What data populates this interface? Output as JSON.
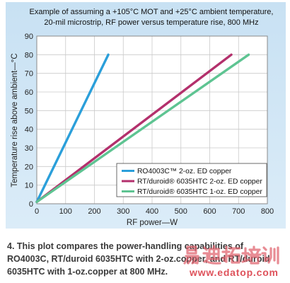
{
  "chart_data": {
    "type": "line",
    "title_lines": [
      "Example of assuming a +105°C MOT and +25°C ambient temperature,",
      "20-mil microstrip, RF power versus temperature rise, 800 MHz"
    ],
    "xlabel": "RF power—W",
    "ylabel": "Temperature rise above ambient—°C",
    "xlim": [
      0,
      800
    ],
    "ylim": [
      0,
      90
    ],
    "xticks": [
      0,
      100,
      200,
      300,
      400,
      500,
      600,
      700,
      800
    ],
    "yticks": [
      0,
      10,
      20,
      30,
      40,
      50,
      60,
      70,
      80,
      90
    ],
    "grid": true,
    "legend_position": "bottom-right",
    "series": [
      {
        "name": "RO4003C™ 2-oz. ED copper",
        "color": "#2b9fda",
        "x": [
          0,
          248
        ],
        "y": [
          1,
          80
        ]
      },
      {
        "name": "RT/duroid® 6035HTC 2-oz. ED copper",
        "color": "#b3306c",
        "x": [
          0,
          675
        ],
        "y": [
          1,
          80
        ]
      },
      {
        "name": "RT/duroid® 6035HTC 1-oz. ED copper",
        "color": "#5ec492",
        "x": [
          0,
          735
        ],
        "y": [
          1,
          80
        ]
      }
    ]
  },
  "caption": {
    "lines": [
      "4. This plot compares the power-handling capabilities of",
      "RO4003C, RT/duroid 6035HTC with 2-oz.copper, and RT/duroid",
      "6035HTC with 1-oz.copper at 800 MHz."
    ]
  },
  "watermark": {
    "text": "易迪拓培训",
    "url": "www.edatop.com",
    "color": "#d9343f"
  }
}
